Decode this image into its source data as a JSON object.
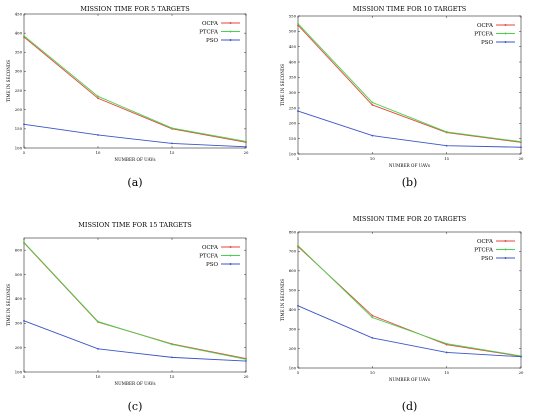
{
  "chart_data": [
    {
      "type": "line",
      "title": "MISSION TIME FOR 5 TARGETS",
      "caption": "(a)",
      "xlabel": "NUMBER OF UAVs",
      "ylabel": "TIME IN SECONDS",
      "x": [
        5,
        10,
        15,
        20
      ],
      "xticks": [
        5,
        10,
        15,
        20
      ],
      "ylim": [
        100,
        450
      ],
      "yticks": [
        100,
        150,
        200,
        250,
        300,
        350,
        400,
        450
      ],
      "legend_position": "top-right",
      "series": [
        {
          "name": "OCFA",
          "color": "#e8463c",
          "values": [
            390,
            230,
            150,
            115
          ]
        },
        {
          "name": "PTCFA",
          "color": "#46d24a",
          "values": [
            393,
            235,
            152,
            117
          ]
        },
        {
          "name": "PSO",
          "color": "#3b55c8",
          "values": [
            162,
            134,
            112,
            103
          ]
        }
      ]
    },
    {
      "type": "line",
      "title": "MISSION TIME FOR 10 TARGETS",
      "caption": "(b)",
      "xlabel": "NUMBER OF UAVs",
      "ylabel": "TIME IN SECONDS",
      "x": [
        5,
        10,
        15,
        20
      ],
      "xticks": [
        5,
        10,
        15,
        20
      ],
      "ylim": [
        100,
        550
      ],
      "yticks": [
        100,
        150,
        200,
        250,
        300,
        350,
        400,
        450,
        500,
        550
      ],
      "legend_position": "top-right",
      "series": [
        {
          "name": "OCFA",
          "color": "#e8463c",
          "values": [
            520,
            260,
            170,
            138
          ]
        },
        {
          "name": "PTCFA",
          "color": "#46d24a",
          "values": [
            525,
            268,
            172,
            140
          ]
        },
        {
          "name": "PSO",
          "color": "#3b55c8",
          "values": [
            240,
            160,
            127,
            122
          ]
        }
      ]
    },
    {
      "type": "line",
      "title": "MISSION TIME FOR 15 TARGETS",
      "caption": "(c)",
      "xlabel": "NUMBER OF UAVs",
      "ylabel": "TIME IN SECONDS",
      "x": [
        5,
        10,
        15,
        20
      ],
      "xticks": [
        5,
        10,
        15,
        20
      ],
      "ylim": [
        100,
        650
      ],
      "yticks": [
        100,
        200,
        300,
        400,
        500,
        600
      ],
      "legend_position": "top-right",
      "series": [
        {
          "name": "OCFA",
          "color": "#e8463c",
          "values": [
            630,
            305,
            215,
            155
          ]
        },
        {
          "name": "PTCFA",
          "color": "#46d24a",
          "values": [
            632,
            307,
            213,
            152
          ]
        },
        {
          "name": "PSO",
          "color": "#3b55c8",
          "values": [
            310,
            195,
            160,
            145
          ]
        }
      ]
    },
    {
      "type": "line",
      "title": "MISSION TIME FOR 20 TARGETS",
      "caption": "(d)",
      "xlabel": "NUMBER OF UAVs",
      "ylabel": "TIME IN SECONDS",
      "x": [
        5,
        10,
        15,
        20
      ],
      "xticks": [
        5,
        10,
        15,
        20
      ],
      "ylim": [
        100,
        800
      ],
      "yticks": [
        100,
        200,
        300,
        400,
        500,
        600,
        700,
        800
      ],
      "legend_position": "top-right",
      "series": [
        {
          "name": "OCFA",
          "color": "#e8463c",
          "values": [
            725,
            370,
            220,
            160
          ]
        },
        {
          "name": "PTCFA",
          "color": "#46d24a",
          "values": [
            730,
            360,
            225,
            162
          ]
        },
        {
          "name": "PSO",
          "color": "#3b55c8",
          "values": [
            420,
            255,
            180,
            158
          ]
        }
      ]
    }
  ]
}
